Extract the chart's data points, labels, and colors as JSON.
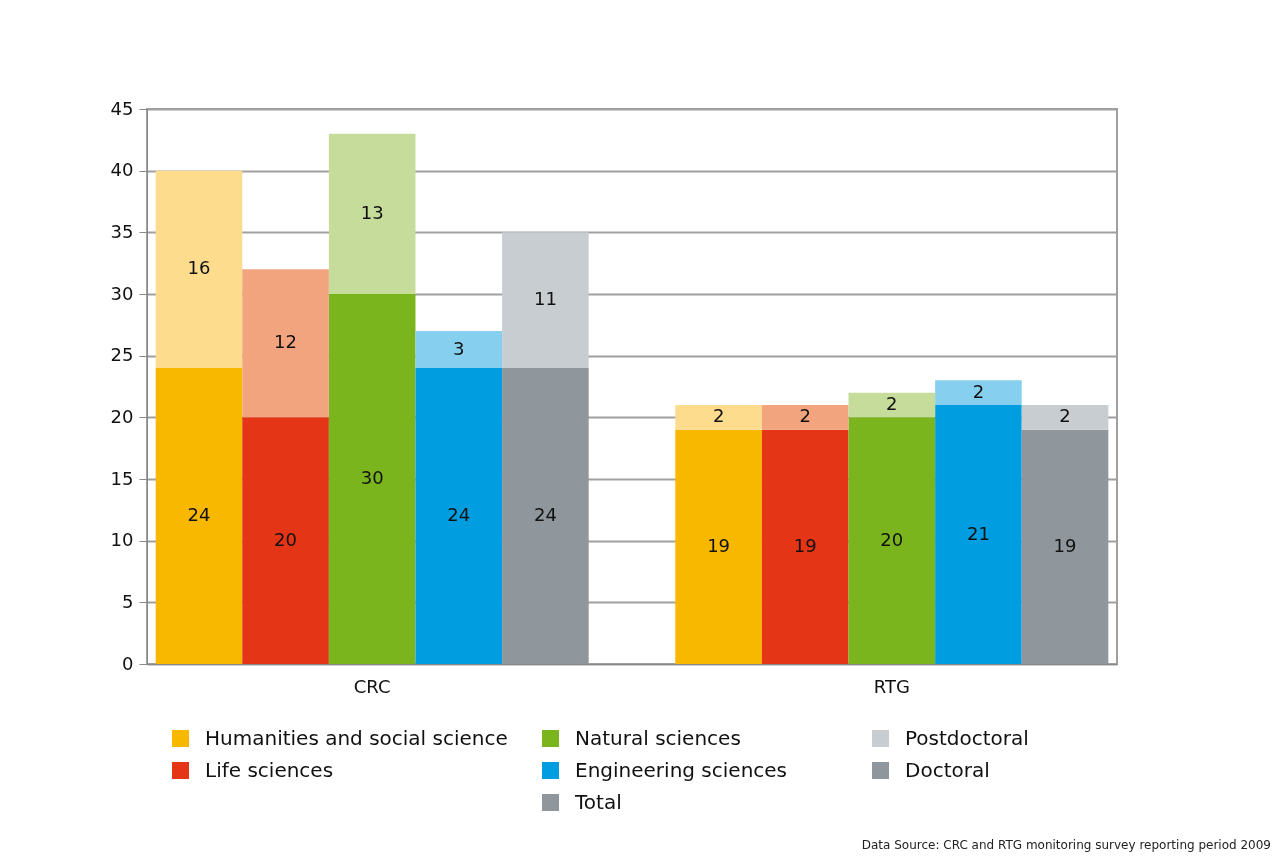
{
  "chart_data": {
    "type": "bar",
    "stacked": true,
    "categories": [
      null,
      null,
      "CRC",
      null,
      null,
      null,
      null,
      null,
      "RTG",
      null,
      null
    ],
    "series": [
      {
        "name": "Doctoral",
        "values": [
          24,
          20,
          30,
          24,
          24,
          null,
          19,
          19,
          20,
          21,
          19
        ],
        "colors": [
          "#f9b800",
          "#e53517",
          "#7ab51d",
          "#009ee0",
          "#8f979c",
          null,
          "#f9b800",
          "#e53517",
          "#7ab51d",
          "#009ee0",
          "#8f979c"
        ]
      },
      {
        "name": "Postdoctoral",
        "values": [
          16,
          12,
          13,
          3,
          11,
          null,
          2,
          2,
          2,
          2,
          2
        ],
        "colors": [
          "#fddc8e",
          "#f2a47e",
          "#c6dc9a",
          "#86cfee",
          "#c8cdd1",
          null,
          "#fddc8e",
          "#f2a47e",
          "#c6dc9a",
          "#86cfee",
          "#c8cdd1"
        ]
      }
    ],
    "ylim": [
      0,
      45
    ],
    "yticks": [
      0,
      5,
      10,
      15,
      20,
      25,
      30,
      35,
      40,
      45
    ],
    "grid": "y",
    "legend": "bottom",
    "data_labels": true,
    "annotations": [
      "Humanities and social science",
      "Life sciences",
      "Natural sciences",
      "Engineering sciences",
      "Total",
      "Data Source: CRC and RTG monitoring survey reporting period 2009"
    ]
  }
}
